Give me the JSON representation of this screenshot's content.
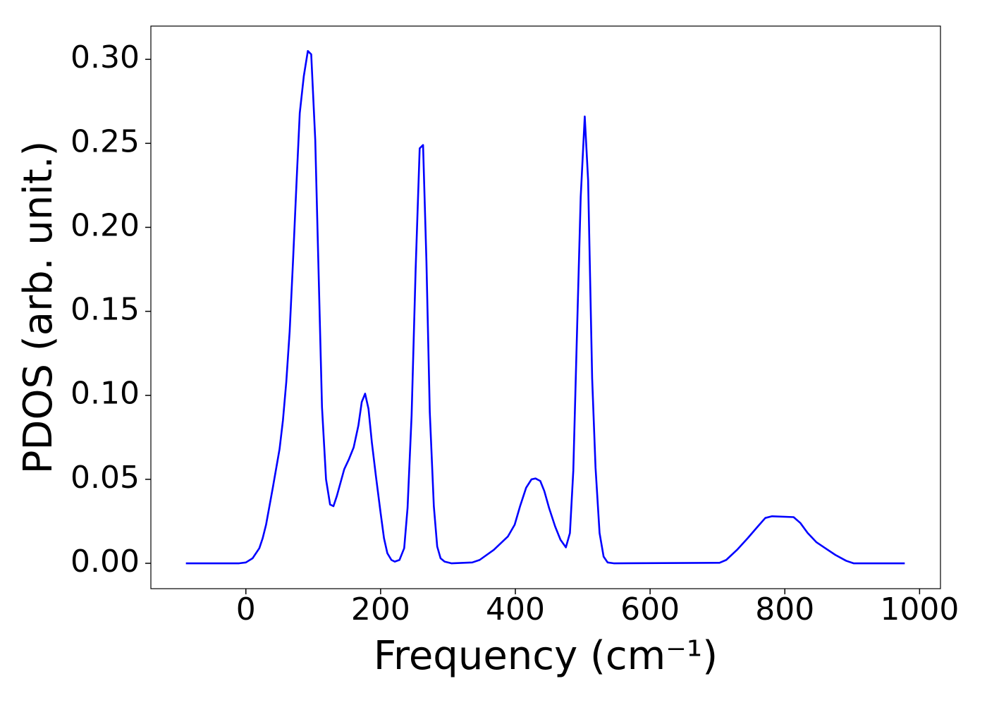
{
  "chart_data": {
    "type": "line",
    "x_label": "Frequency (cm⁻¹)",
    "y_label": "PDOS (arb. unit.)",
    "x": [
      -89,
      -50,
      -10,
      0,
      10,
      20,
      25,
      30,
      40,
      50,
      55,
      60,
      65,
      70,
      75,
      80,
      86,
      92,
      97,
      103,
      113,
      119,
      125,
      130,
      135,
      146,
      153,
      160,
      167,
      172,
      177,
      182,
      187,
      193,
      200,
      205,
      210,
      216,
      221,
      228,
      235,
      240,
      246,
      252,
      258,
      263,
      268,
      273,
      279,
      284,
      289,
      295,
      305,
      336,
      347,
      368,
      389,
      399,
      407,
      416,
      424,
      430,
      437,
      443,
      450,
      459,
      467,
      475,
      481,
      486,
      491,
      497,
      503,
      508,
      514,
      519,
      525,
      531,
      537,
      546,
      703,
      713,
      729,
      745,
      760,
      771,
      781,
      813,
      823,
      834,
      847,
      860,
      875,
      891,
      902,
      978
    ],
    "series": [
      {
        "name": "PDOS",
        "color": "#0000ff",
        "values": [
          0,
          0,
          0,
          0.0005,
          0.003,
          0.009,
          0.015,
          0.023,
          0.045,
          0.068,
          0.085,
          0.108,
          0.138,
          0.18,
          0.225,
          0.268,
          0.29,
          0.305,
          0.303,
          0.252,
          0.093,
          0.05,
          0.035,
          0.034,
          0.04,
          0.056,
          0.062,
          0.069,
          0.082,
          0.096,
          0.101,
          0.092,
          0.072,
          0.052,
          0.03,
          0.015,
          0.006,
          0.002,
          0.001,
          0.002,
          0.009,
          0.033,
          0.088,
          0.175,
          0.247,
          0.249,
          0.18,
          0.09,
          0.034,
          0.01,
          0.003,
          0.001,
          0,
          0.0005,
          0.002,
          0.008,
          0.016,
          0.023,
          0.034,
          0.045,
          0.05,
          0.0505,
          0.049,
          0.043,
          0.033,
          0.022,
          0.014,
          0.0095,
          0.018,
          0.055,
          0.13,
          0.218,
          0.266,
          0.228,
          0.11,
          0.057,
          0.018,
          0.004,
          0.0005,
          0,
          0.0003,
          0.002,
          0.008,
          0.015,
          0.022,
          0.027,
          0.028,
          0.0275,
          0.024,
          0.018,
          0.0125,
          0.009,
          0.005,
          0.0015,
          0,
          0
        ]
      }
    ],
    "xlim": [
      -141,
      1031
    ],
    "ylim": [
      -0.0151,
      0.3198
    ],
    "xticks": [
      0,
      200,
      400,
      600,
      800,
      1000
    ],
    "yticks": [
      {
        "value": 0,
        "label": "0.00"
      },
      {
        "value": 0.05,
        "label": "0.05"
      },
      {
        "value": 0.1,
        "label": "0.10"
      },
      {
        "value": 0.15,
        "label": "0.15"
      },
      {
        "value": 0.2,
        "label": "0.20"
      },
      {
        "value": 0.25,
        "label": "0.25"
      },
      {
        "value": 0.3,
        "label": "0.30"
      }
    ],
    "grid": false
  }
}
